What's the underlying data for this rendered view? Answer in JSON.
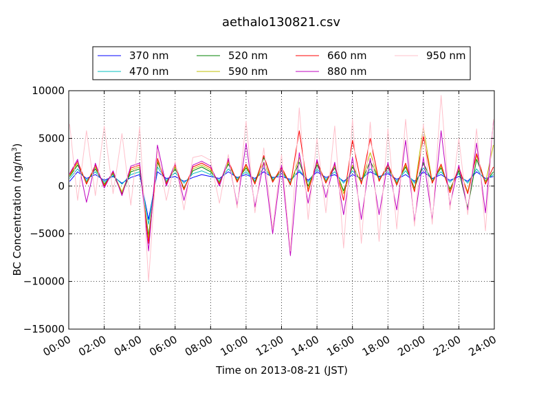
{
  "chart_data": {
    "type": "line",
    "title": "aethalo130821.csv",
    "xlabel": "Time on 2013-08-21 (JST)",
    "ylabel_main": "BC Concentration (ng/m",
    "ylabel_sup": "3",
    "ylabel_end": ")",
    "xlim": [
      "2013-08-21 00:00",
      "2013-08-22 00:00"
    ],
    "ylim": [
      -15000,
      10000
    ],
    "grid": true,
    "legend_position": "top (above plot)",
    "x_ticks": [
      {
        "hour": 0,
        "label": "00:00"
      },
      {
        "hour": 2,
        "label": "02:00"
      },
      {
        "hour": 4,
        "label": "04:00"
      },
      {
        "hour": 6,
        "label": "06:00"
      },
      {
        "hour": 8,
        "label": "08:00"
      },
      {
        "hour": 10,
        "label": "10:00"
      },
      {
        "hour": 12,
        "label": "12:00"
      },
      {
        "hour": 14,
        "label": "14:00"
      },
      {
        "hour": 16,
        "label": "16:00"
      },
      {
        "hour": 18,
        "label": "18:00"
      },
      {
        "hour": 20,
        "label": "20:00"
      },
      {
        "hour": 22,
        "label": "22:00"
      },
      {
        "hour": 24,
        "label": "24:00"
      }
    ],
    "y_ticks": [
      {
        "value": 10000,
        "label": "10000"
      },
      {
        "value": 5000,
        "label": "5000"
      },
      {
        "value": 0,
        "label": "0"
      },
      {
        "value": -5000,
        "label": "−5000"
      },
      {
        "value": -10000,
        "label": "−10000"
      },
      {
        "value": -15000,
        "label": "−15000"
      }
    ],
    "series": [
      {
        "name": "370 nm",
        "color": "#0000ff",
        "x": [
          0.05,
          0.5,
          1.0,
          1.5,
          2.0,
          2.5,
          3.0,
          3.5,
          4.0,
          4.5,
          5.0,
          5.5,
          6.0,
          6.5,
          7.0,
          7.5,
          8.0,
          8.5,
          9.0,
          9.5,
          10.0,
          10.5,
          11.0,
          11.5,
          12.0,
          12.5,
          13.0,
          13.5,
          14.0,
          14.5,
          15.0,
          15.5,
          16.0,
          16.5,
          17.0,
          17.5,
          18.0,
          18.5,
          19.0,
          19.5,
          20.0,
          20.5,
          21.0,
          21.5,
          22.0,
          22.5,
          23.0,
          23.5,
          23.95
        ],
        "y": [
          500,
          1500,
          800,
          1200,
          600,
          1000,
          300,
          900,
          1200,
          -3500,
          1500,
          800,
          1000,
          500,
          900,
          1200,
          1000,
          800,
          1500,
          900,
          1200,
          800,
          1500,
          900,
          1000,
          700,
          1500,
          600,
          1500,
          900,
          1200,
          500,
          1200,
          800,
          1500,
          1000,
          1300,
          700,
          1200,
          500,
          1500,
          800,
          1200,
          600,
          1000,
          500,
          1500,
          800,
          1000
        ]
      },
      {
        "name": "470 nm",
        "color": "#00bfbf",
        "x": [
          0.05,
          0.5,
          1.0,
          1.5,
          2.0,
          2.5,
          3.0,
          3.5,
          4.0,
          4.5,
          5.0,
          5.5,
          6.0,
          6.5,
          7.0,
          7.5,
          8.0,
          8.5,
          9.0,
          9.5,
          10.0,
          10.5,
          11.0,
          11.5,
          12.0,
          12.5,
          13.0,
          13.5,
          14.0,
          14.5,
          15.0,
          15.5,
          16.0,
          16.5,
          17.0,
          17.5,
          18.0,
          18.5,
          19.0,
          19.5,
          20.0,
          20.5,
          21.0,
          21.5,
          22.0,
          22.5,
          23.0,
          23.5,
          23.95
        ],
        "y": [
          800,
          1800,
          600,
          1500,
          400,
          1100,
          200,
          1200,
          1500,
          -4000,
          2000,
          600,
          1400,
          300,
          1300,
          1600,
          1200,
          600,
          1800,
          800,
          1500,
          600,
          1900,
          800,
          1300,
          500,
          1700,
          400,
          1800,
          700,
          1500,
          300,
          1600,
          600,
          1800,
          900,
          1500,
          500,
          1600,
          300,
          1900,
          700,
          1500,
          400,
          1300,
          300,
          1800,
          600,
          1200
        ]
      },
      {
        "name": "520 nm",
        "color": "#008000",
        "x": [
          0.05,
          0.5,
          1.0,
          1.5,
          2.0,
          2.5,
          3.0,
          3.5,
          4.0,
          4.5,
          5.0,
          5.5,
          6.0,
          6.5,
          7.0,
          7.5,
          8.0,
          8.5,
          9.0,
          9.5,
          10.0,
          10.5,
          11.0,
          11.5,
          12.0,
          12.5,
          13.0,
          13.5,
          14.0,
          14.5,
          15.0,
          15.5,
          16.0,
          16.5,
          17.0,
          17.5,
          18.0,
          18.5,
          19.0,
          19.5,
          20.0,
          20.5,
          21.0,
          21.5,
          22.0,
          22.5,
          23.0,
          23.5,
          23.95
        ],
        "y": [
          1000,
          2200,
          400,
          1800,
          200,
          1300,
          -800,
          1500,
          1800,
          -5200,
          2500,
          400,
          1800,
          -200,
          1600,
          2000,
          1500,
          400,
          2300,
          600,
          1900,
          400,
          3000,
          600,
          1600,
          300,
          2500,
          0,
          2200,
          500,
          1900,
          -500,
          2000,
          400,
          2600,
          700,
          1900,
          300,
          2000,
          -200,
          2400,
          500,
          1900,
          -300,
          1600,
          -2300,
          2800,
          400,
          1500
        ]
      },
      {
        "name": "590 nm",
        "color": "#bfbf00",
        "x": [
          0.05,
          0.5,
          1.0,
          1.5,
          2.0,
          2.5,
          3.0,
          3.5,
          4.0,
          4.5,
          5.0,
          5.5,
          6.0,
          6.5,
          7.0,
          7.5,
          8.0,
          8.5,
          9.0,
          9.5,
          10.0,
          10.5,
          11.0,
          11.5,
          12.0,
          12.5,
          13.0,
          13.5,
          14.0,
          14.5,
          15.0,
          15.5,
          16.0,
          16.5,
          17.0,
          17.5,
          18.0,
          18.5,
          19.0,
          19.5,
          20.0,
          20.5,
          21.0,
          21.5,
          22.0,
          22.5,
          23.0,
          23.5,
          23.95
        ],
        "y": [
          1100,
          2400,
          300,
          2000,
          100,
          1400,
          -600,
          1700,
          2000,
          -5500,
          2700,
          300,
          2000,
          -300,
          1800,
          2200,
          1700,
          300,
          2500,
          500,
          2100,
          300,
          2500,
          500,
          1800,
          200,
          3000,
          -300,
          2400,
          400,
          2100,
          -800,
          2200,
          300,
          3500,
          600,
          2100,
          200,
          2200,
          -400,
          6200,
          400,
          2100,
          -500,
          1800,
          -600,
          3200,
          300,
          4300
        ]
      },
      {
        "name": "660 nm",
        "color": "#ff0000",
        "x": [
          0.05,
          0.5,
          1.0,
          1.5,
          2.0,
          2.5,
          3.0,
          3.5,
          4.0,
          4.5,
          5.0,
          5.5,
          6.0,
          6.5,
          7.0,
          7.5,
          8.0,
          8.5,
          9.0,
          9.5,
          10.0,
          10.5,
          11.0,
          11.5,
          12.0,
          12.5,
          13.0,
          13.5,
          14.0,
          14.5,
          15.0,
          15.5,
          16.0,
          16.5,
          17.0,
          17.5,
          18.0,
          18.5,
          19.0,
          19.5,
          20.0,
          20.5,
          21.0,
          21.5,
          22.0,
          22.5,
          23.0,
          23.5,
          23.95
        ],
        "y": [
          1200,
          2600,
          200,
          2200,
          0,
          1500,
          -900,
          1900,
          2200,
          -6000,
          2900,
          200,
          2200,
          -400,
          2000,
          2400,
          1900,
          200,
          2700,
          400,
          2300,
          200,
          3200,
          400,
          2000,
          100,
          5800,
          -600,
          2600,
          300,
          2300,
          -1500,
          4800,
          200,
          5000,
          500,
          2300,
          100,
          2400,
          -600,
          5200,
          300,
          2300,
          -700,
          2000,
          -800,
          3400,
          200,
          2000
        ]
      },
      {
        "name": "880 nm",
        "color": "#bf00bf",
        "x": [
          0.05,
          0.5,
          1.0,
          1.5,
          2.0,
          2.5,
          3.0,
          3.5,
          4.0,
          4.5,
          5.0,
          5.5,
          6.0,
          6.5,
          7.0,
          7.5,
          8.0,
          8.5,
          9.0,
          9.5,
          10.0,
          10.5,
          11.0,
          11.5,
          12.0,
          12.5,
          13.0,
          13.5,
          14.0,
          14.5,
          15.0,
          15.5,
          16.0,
          16.5,
          17.0,
          17.5,
          18.0,
          18.5,
          19.0,
          19.5,
          20.0,
          20.5,
          21.0,
          21.5,
          22.0,
          22.5,
          23.0,
          23.5,
          23.95
        ],
        "y": [
          1300,
          2800,
          -1700,
          2400,
          -200,
          1600,
          -1000,
          2100,
          2400,
          -6800,
          4300,
          0,
          2400,
          -1500,
          2200,
          2600,
          2100,
          0,
          2900,
          -2000,
          4500,
          -2200,
          2500,
          -5000,
          2200,
          -7300,
          3500,
          -1800,
          2800,
          -1200,
          2500,
          -3000,
          3000,
          -3500,
          2900,
          -3000,
          2500,
          -2500,
          4800,
          -3700,
          3000,
          -3500,
          5800,
          -2000,
          2200,
          -2500,
          4500,
          -2800,
          6800
        ]
      },
      {
        "name": "950 nm",
        "color": "#ffc0cb",
        "x": [
          0.05,
          0.5,
          1.0,
          1.5,
          2.0,
          2.5,
          3.0,
          3.5,
          4.0,
          4.5,
          5.0,
          5.5,
          6.0,
          6.5,
          7.0,
          7.5,
          8.0,
          8.5,
          9.0,
          9.5,
          10.0,
          10.5,
          11.0,
          11.5,
          12.0,
          12.5,
          13.0,
          13.5,
          14.0,
          14.5,
          15.0,
          15.5,
          16.0,
          16.5,
          17.0,
          17.5,
          18.0,
          18.5,
          19.0,
          19.5,
          20.0,
          20.5,
          21.0,
          21.5,
          22.0,
          22.5,
          23.0,
          23.5,
          23.95
        ],
        "y": [
          6500,
          -1500,
          5800,
          -1000,
          6300,
          -800,
          5500,
          -2000,
          6200,
          -10000,
          3800,
          -1500,
          2600,
          -2500,
          3000,
          3200,
          2700,
          -1800,
          3300,
          -2300,
          6800,
          -2800,
          4000,
          -4500,
          3300,
          -6800,
          8200,
          -3500,
          5000,
          -2800,
          6300,
          -6500,
          7000,
          -6000,
          6700,
          -5800,
          6000,
          -4500,
          7000,
          -4200,
          6500,
          -4000,
          9500,
          -2500,
          5000,
          -3000,
          6000,
          -4700,
          7000
        ]
      }
    ]
  }
}
